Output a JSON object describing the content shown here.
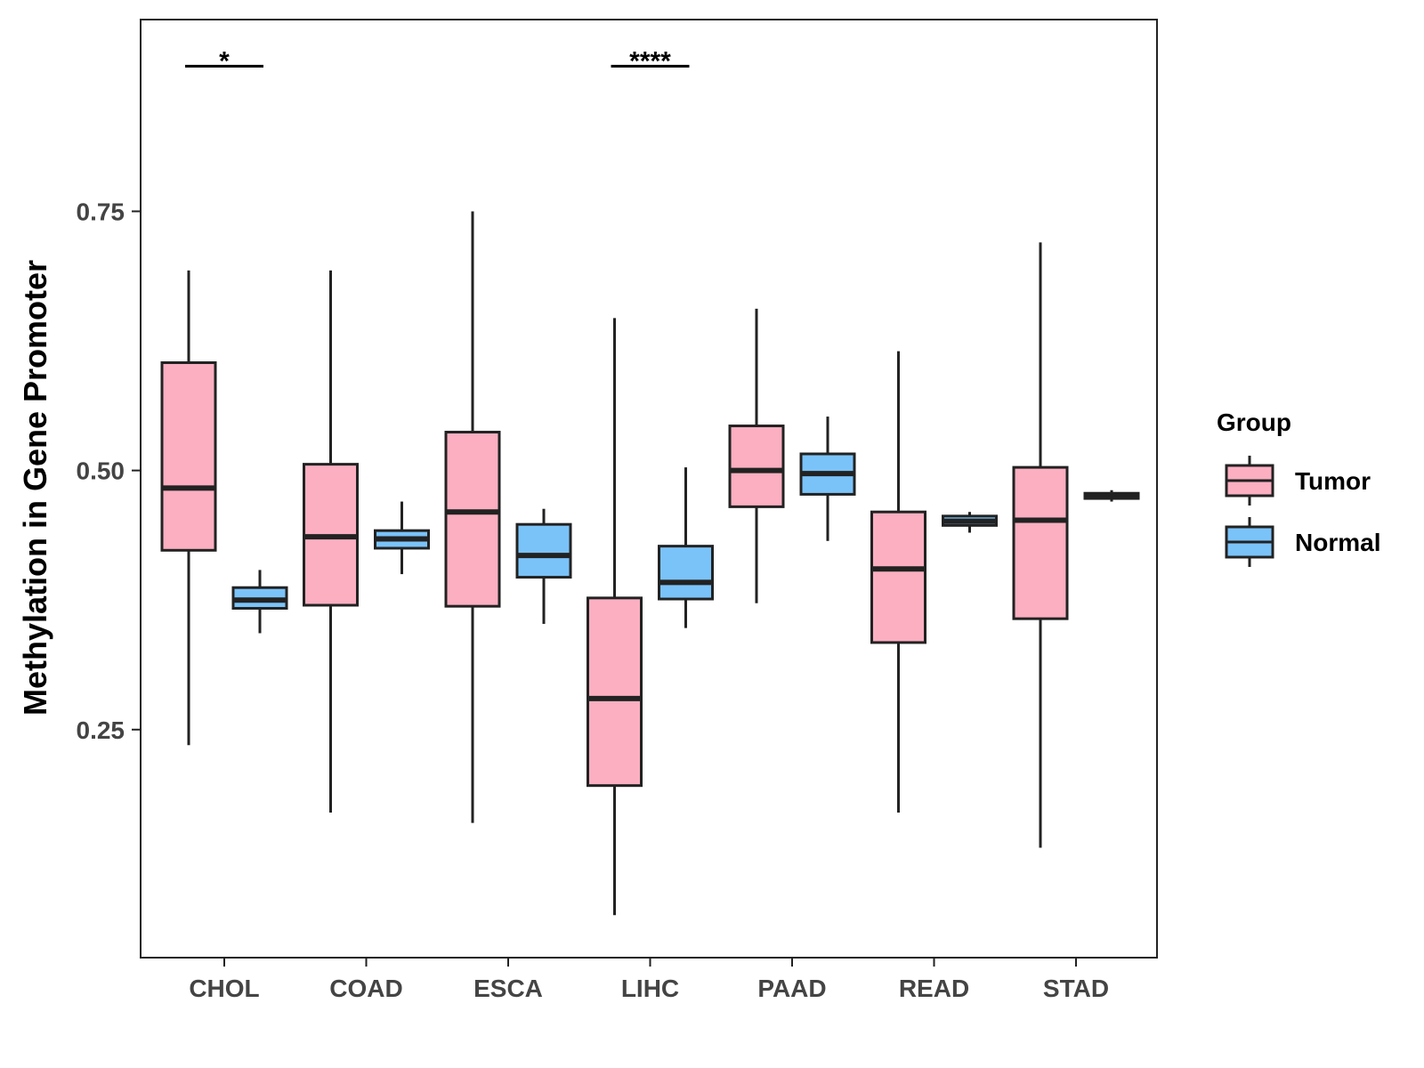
{
  "chart_data": {
    "type": "boxplot",
    "title": "",
    "xlabel": "",
    "ylabel": "Methylation in Gene Promoter",
    "ylim": [
      0.03,
      0.935
    ],
    "yticks": [
      0.25,
      0.5,
      0.75
    ],
    "ytick_labels": [
      "0.25",
      "0.50",
      "0.75"
    ],
    "categories": [
      "CHOL",
      "COAD",
      "ESCA",
      "LIHC",
      "PAAD",
      "READ",
      "STAD"
    ],
    "series": [
      {
        "name": "Tumor",
        "color": "#FBAFC1",
        "boxes": [
          {
            "min": 0.235,
            "q1": 0.423,
            "median": 0.483,
            "q3": 0.604,
            "max": 0.693
          },
          {
            "min": 0.17,
            "q1": 0.37,
            "median": 0.436,
            "q3": 0.506,
            "max": 0.693
          },
          {
            "min": 0.16,
            "q1": 0.369,
            "median": 0.46,
            "q3": 0.537,
            "max": 0.75
          },
          {
            "min": 0.071,
            "q1": 0.196,
            "median": 0.28,
            "q3": 0.377,
            "max": 0.647
          },
          {
            "min": 0.372,
            "q1": 0.465,
            "median": 0.5,
            "q3": 0.543,
            "max": 0.656
          },
          {
            "min": 0.17,
            "q1": 0.334,
            "median": 0.405,
            "q3": 0.46,
            "max": 0.615
          },
          {
            "min": 0.136,
            "q1": 0.357,
            "median": 0.452,
            "q3": 0.503,
            "max": 0.72
          }
        ]
      },
      {
        "name": "Normal",
        "color": "#7AC3F9",
        "boxes": [
          {
            "min": 0.343,
            "q1": 0.367,
            "median": 0.375,
            "q3": 0.387,
            "max": 0.404
          },
          {
            "min": 0.4,
            "q1": 0.425,
            "median": 0.434,
            "q3": 0.442,
            "max": 0.47
          },
          {
            "min": 0.352,
            "q1": 0.397,
            "median": 0.418,
            "q3": 0.448,
            "max": 0.463
          },
          {
            "min": 0.348,
            "q1": 0.376,
            "median": 0.392,
            "q3": 0.427,
            "max": 0.503
          },
          {
            "min": 0.432,
            "q1": 0.477,
            "median": 0.497,
            "q3": 0.516,
            "max": 0.552
          },
          {
            "min": 0.44,
            "q1": 0.447,
            "median": 0.451,
            "q3": 0.456,
            "max": 0.46
          },
          {
            "min": 0.47,
            "q1": 0.473,
            "median": 0.476,
            "q3": 0.478,
            "max": 0.481
          }
        ]
      }
    ],
    "significance": [
      {
        "category": "CHOL",
        "label": "*",
        "value": 0.89
      },
      {
        "category": "LIHC",
        "label": "****",
        "value": 0.89
      }
    ],
    "legend": {
      "title": "Group",
      "position": "right",
      "entries": [
        "Tumor",
        "Normal"
      ]
    },
    "grid": false
  }
}
